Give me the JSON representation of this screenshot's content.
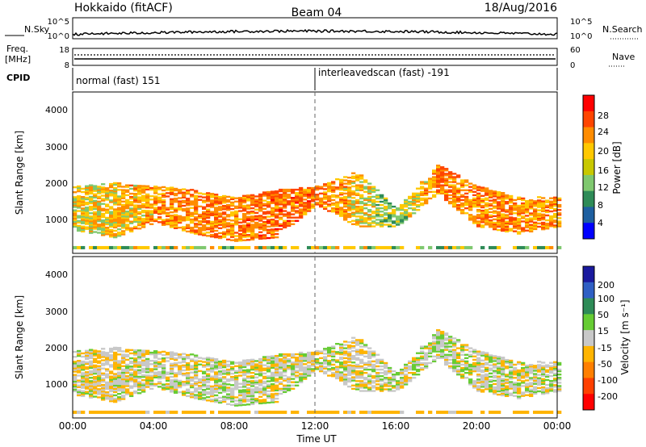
{
  "header": {
    "station": "Hokkaido (fitACF)",
    "beam": "Beam 04",
    "date": "18/Aug/2016"
  },
  "strip": {
    "nsky_label": "N.Sky",
    "nsky_ticks": [
      "10^5",
      "10^0"
    ],
    "nsearch_label": "N.Search",
    "nsearch_ticks": [
      "10^5",
      "10^0"
    ],
    "freq_label_1": "Freq.",
    "freq_label_2": "[MHz]",
    "freq_ticks": [
      "18",
      "8"
    ],
    "nave_label": "Nave",
    "nave_ticks": [
      "60",
      "0"
    ],
    "cpid_label": "CPID",
    "cpid_segments": [
      {
        "start_hour": 0,
        "text": "normal (fast) 151"
      },
      {
        "start_hour": 12,
        "text": "interleavedscan (fast) -191"
      }
    ]
  },
  "axes": {
    "ylabel": "Slant Range [km]",
    "xlabel": "Time UT",
    "yticks": [
      "4000",
      "3000",
      "2000",
      "1000"
    ],
    "xticks": [
      "00:00",
      "04:00",
      "08:00",
      "12:00",
      "16:00",
      "20:00",
      "00:00"
    ]
  },
  "power_colorbar": {
    "label": "Power [dB]",
    "ticks": [
      "28",
      "24",
      "20",
      "16",
      "12",
      "8",
      "4"
    ],
    "colors": [
      "#ff0000",
      "#ff4500",
      "#ff8c00",
      "#ffc800",
      "#c8c800",
      "#7fc86f",
      "#2e8b57",
      "#1e5fa0",
      "#0000ff"
    ]
  },
  "velocity_colorbar": {
    "label": "Velocity [m s⁻¹]",
    "ticks": [
      "200",
      "100",
      "50",
      "15",
      "-15",
      "-50",
      "-100",
      "-200"
    ],
    "colors": [
      "#1a1a9e",
      "#2f5fc4",
      "#2e8b57",
      "#66cc33",
      "#c8c8c8",
      "#ffb400",
      "#ff7f00",
      "#ff4000",
      "#ff0000"
    ]
  },
  "chart_data": {
    "type": "heatmap",
    "title": "Hokkaido (fitACF)",
    "xlabel": "Time UT",
    "ylabel": "Slant Range [km]",
    "xlim_hours": [
      0,
      24
    ],
    "ylim_km": [
      180,
      4600
    ],
    "x_tick_hours": [
      0,
      4,
      8,
      12,
      16,
      20,
      24
    ],
    "y_ticks_km": [
      1000,
      2000,
      3000,
      4000
    ],
    "power_scale_db": [
      0,
      30
    ],
    "velocity_scale_ms": [
      -250,
      250
    ],
    "panels": [
      "Power [dB]",
      "Velocity [m s⁻¹]"
    ],
    "scatter_bands": [
      {
        "hour": 0,
        "range_low_km": 800,
        "range_high_km": 2000,
        "power_db": 22,
        "velocity_ms": -5
      },
      {
        "hour": 2,
        "range_low_km": 600,
        "range_high_km": 2100,
        "power_db": 24,
        "velocity_ms": -10
      },
      {
        "hour": 4,
        "range_low_km": 1000,
        "range_high_km": 2000,
        "power_db": 26,
        "velocity_ms": 0
      },
      {
        "hour": 6,
        "range_low_km": 700,
        "range_high_km": 1900,
        "power_db": 28,
        "velocity_ms": -5
      },
      {
        "hour": 8,
        "range_low_km": 500,
        "range_high_km": 1700,
        "power_db": 28,
        "velocity_ms": 5
      },
      {
        "hour": 10,
        "range_low_km": 600,
        "range_high_km": 1900,
        "power_db": 29,
        "velocity_ms": -5
      },
      {
        "hour": 12,
        "range_low_km": 1500,
        "range_high_km": 2000,
        "power_db": 28,
        "velocity_ms": 0
      },
      {
        "hour": 14,
        "range_low_km": 900,
        "range_high_km": 2400,
        "power_db": 24,
        "velocity_ms": -5
      },
      {
        "hour": 16,
        "range_low_km": 900,
        "range_high_km": 1400,
        "power_db": 18,
        "velocity_ms": 0
      },
      {
        "hour": 18,
        "range_low_km": 1800,
        "range_high_km": 2600,
        "power_db": 28,
        "velocity_ms": 5
      },
      {
        "hour": 20,
        "range_low_km": 900,
        "range_high_km": 2000,
        "power_db": 27,
        "velocity_ms": 0
      },
      {
        "hour": 22,
        "range_low_km": 700,
        "range_high_km": 1700,
        "power_db": 27,
        "velocity_ms": -5
      },
      {
        "hour": 24,
        "range_low_km": 900,
        "range_high_km": 1700,
        "power_db": 26,
        "velocity_ms": 0
      }
    ]
  }
}
